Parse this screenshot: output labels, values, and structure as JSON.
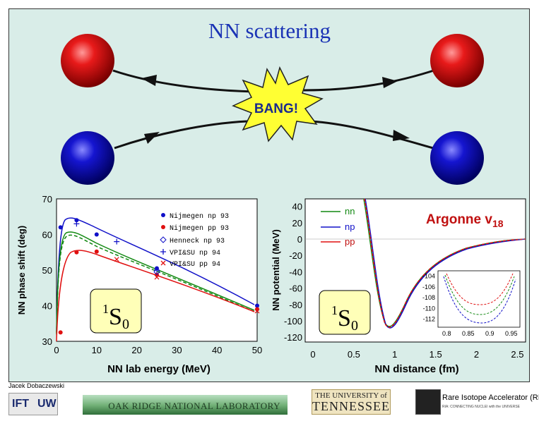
{
  "title": "NN scattering",
  "bang_label": "BANG!",
  "colors": {
    "red_ball": "#e01010",
    "blue_ball": "#1010c8",
    "title": "#1a33b5",
    "star": "#ffff33"
  },
  "chart_data": [
    {
      "type": "scatter",
      "xlabel": "NN lab energy (MeV)",
      "ylabel": "NN phase shift (deg)",
      "xlim": [
        0,
        50
      ],
      "ylim": [
        30,
        70
      ],
      "xticks": [
        0,
        10,
        20,
        30,
        40,
        50
      ],
      "yticks": [
        30,
        40,
        50,
        60,
        70
      ],
      "annotation": "1S0",
      "legend": [
        "Nijmegen np 93",
        "Nijmegen pp 93",
        "Henneck np 93",
        "VPI&SU np 94",
        "VPI&SU pp 94"
      ],
      "series": [
        {
          "name": "Nijmegen np 93",
          "color": "#1010c8",
          "x": [
            1,
            5,
            10,
            25,
            50
          ],
          "y": [
            62,
            64,
            60,
            50.5,
            40
          ]
        },
        {
          "name": "Nijmegen pp 93",
          "color": "#e01010",
          "x": [
            1,
            5,
            10,
            25,
            50
          ],
          "y": [
            32.5,
            55,
            55.2,
            48.7,
            39
          ]
        },
        {
          "name": "Henneck np 93",
          "color": "#1010c8",
          "x": [
            25
          ],
          "y": [
            49.5
          ]
        },
        {
          "name": "VPI&SU np 94",
          "color": "#1010c8",
          "x": [
            5,
            15,
            25
          ],
          "y": [
            63,
            58,
            50
          ]
        },
        {
          "name": "VPI&SU pp 94",
          "color": "#e01010",
          "x": [
            15,
            25,
            50
          ],
          "y": [
            53,
            48,
            38.5
          ]
        }
      ]
    },
    {
      "type": "line",
      "title": "Argonne v18",
      "xlabel": "NN distance (fm)",
      "ylabel": "NN potential (MeV)",
      "xlim": [
        0,
        2.6
      ],
      "ylim": [
        -125,
        50
      ],
      "xticks": [
        0,
        0.5,
        1,
        1.5,
        2,
        2.5
      ],
      "yticks": [
        40,
        20,
        0,
        -20,
        -40,
        -60,
        -80,
        -100,
        -120
      ],
      "annotation": "1S0",
      "legend": [
        "nn",
        "np",
        "pp"
      ],
      "series": [
        {
          "name": "nn",
          "color": "#118811"
        },
        {
          "name": "np",
          "color": "#1010c8"
        },
        {
          "name": "pp",
          "color": "#e01010"
        }
      ],
      "inset": {
        "xticks": [
          0.8,
          0.85,
          0.9,
          0.95
        ],
        "yticks": [
          -104,
          -106,
          -108,
          -110,
          -112
        ],
        "xlim": [
          0.78,
          0.97
        ],
        "ylim": [
          -113.5,
          -103
        ]
      }
    }
  ],
  "footer": {
    "author": "Jacek Dobaczewski",
    "ift_left": "IFT",
    "ift_right": "UW",
    "ornl": "OAK RIDGE NATIONAL LABORATORY",
    "utk_top": "THE UNIVERSITY of",
    "utk_bottom": "TENNESSEE",
    "ria_title": "Rare Isotope Accelerator (RIA)",
    "ria_sub": "RIA: CONNECTING NUCLEI with the UNIVERSE"
  }
}
